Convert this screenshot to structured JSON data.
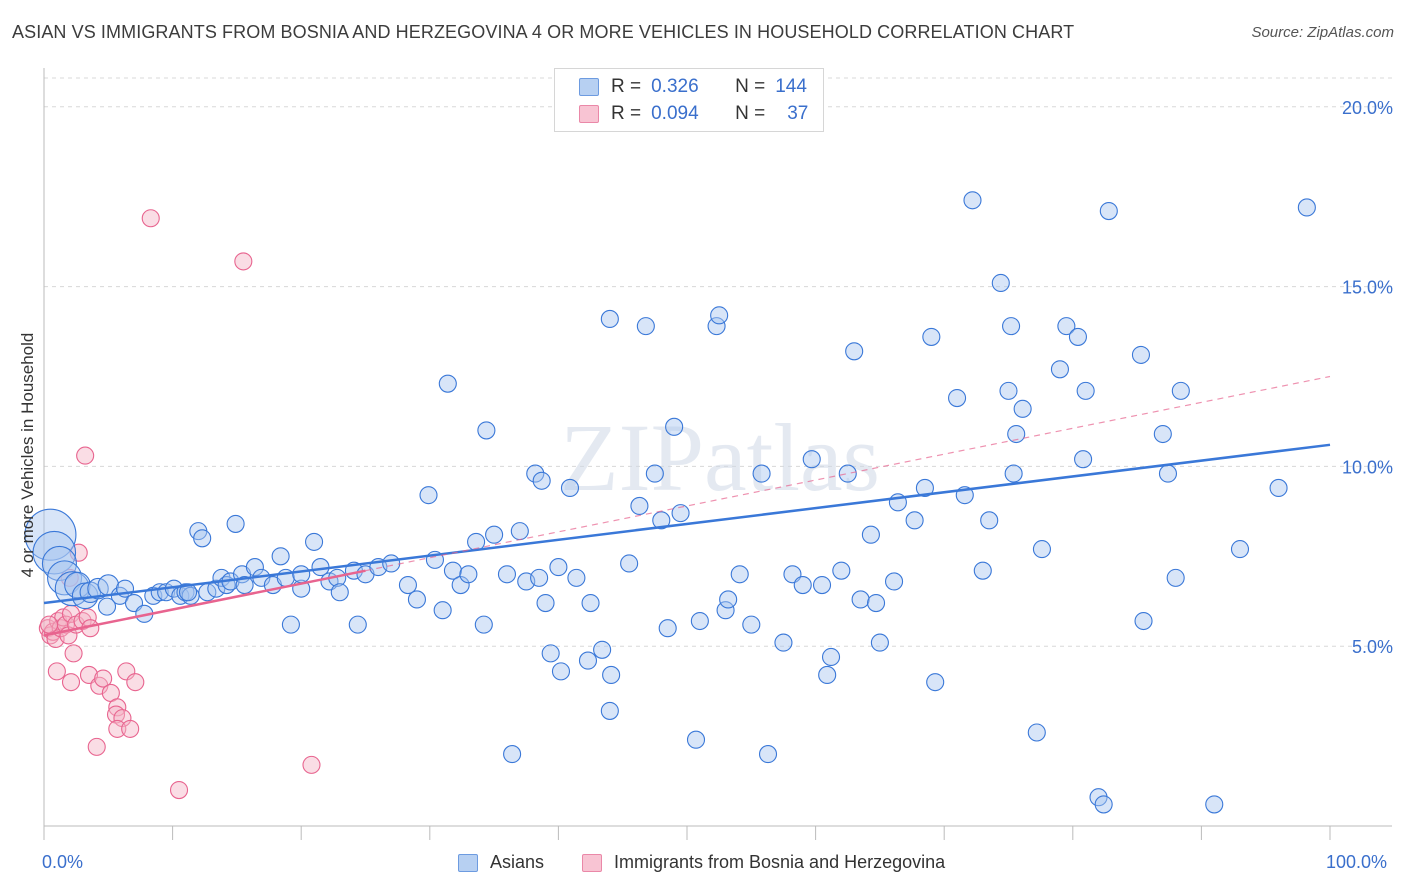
{
  "title": "ASIAN VS IMMIGRANTS FROM BOSNIA AND HERZEGOVINA 4 OR MORE VEHICLES IN HOUSEHOLD CORRELATION CHART",
  "source": "Source: ZipAtlas.com",
  "watermark": "ZIPatlas",
  "colors": {
    "blue": "#3a78d8",
    "blue_fill": "#a9c6ef",
    "pink": "#e8648f",
    "pink_fill": "#f5b3c6",
    "tick_label": "#3a6fcc",
    "grid": "#d8d8d8"
  },
  "legend": {
    "rows": [
      {
        "r_label": "R =",
        "r_value": "0.326",
        "n_label": "N =",
        "n_value": "144"
      },
      {
        "r_label": "R =",
        "r_value": "0.094",
        "n_label": "N =",
        "n_value": "37"
      }
    ]
  },
  "bottom_legend": [
    "Asians",
    "Immigrants from Bosnia and Herzegovina"
  ],
  "chart_data": {
    "type": "scatter",
    "title": "ASIAN VS IMMIGRANTS FROM BOSNIA AND HERZEGOVINA 4 OR MORE VEHICLES IN HOUSEHOLD CORRELATION CHART",
    "xlabel": "",
    "ylabel": "4 or more Vehicles in Household",
    "xlim": [
      0,
      100
    ],
    "ylim": [
      0,
      20.8
    ],
    "x_tick_labels": [
      "0.0%",
      "100.0%"
    ],
    "y_ticks": [
      5,
      10,
      15,
      20
    ],
    "y_tick_labels": [
      "5.0%",
      "10.0%",
      "15.0%",
      "20.0%"
    ],
    "grid": true,
    "series": [
      {
        "name": "Asians",
        "R": 0.326,
        "N": 144,
        "trend": {
          "x0": 0,
          "y0": 6.2,
          "x1": 100,
          "y1": 10.6,
          "dashed_from_x": null
        },
        "points": [
          {
            "x": 0.5,
            "y": 8.1,
            "s": 3
          },
          {
            "x": 0.8,
            "y": 7.6,
            "s": 2.5
          },
          {
            "x": 1.2,
            "y": 7.3,
            "s": 2
          },
          {
            "x": 1.6,
            "y": 6.9,
            "s": 2
          },
          {
            "x": 2.2,
            "y": 6.6,
            "s": 2
          },
          {
            "x": 2.6,
            "y": 6.7,
            "s": 1.5
          },
          {
            "x": 3.2,
            "y": 6.4,
            "s": 1.5
          },
          {
            "x": 3.6,
            "y": 6.5,
            "s": 1.2
          },
          {
            "x": 4.2,
            "y": 6.6,
            "s": 1.2
          },
          {
            "x": 5.0,
            "y": 6.7,
            "s": 1.2
          },
          {
            "x": 5.9,
            "y": 6.4,
            "s": 1
          },
          {
            "x": 6.3,
            "y": 6.6,
            "s": 1
          },
          {
            "x": 4.9,
            "y": 6.1,
            "s": 1
          },
          {
            "x": 7.0,
            "y": 6.2,
            "s": 1
          },
          {
            "x": 7.8,
            "y": 5.9,
            "s": 1
          },
          {
            "x": 8.5,
            "y": 6.4,
            "s": 1
          },
          {
            "x": 9.0,
            "y": 6.5,
            "s": 1
          },
          {
            "x": 9.5,
            "y": 6.5,
            "s": 1
          },
          {
            "x": 10.1,
            "y": 6.6,
            "s": 1
          },
          {
            "x": 10.6,
            "y": 6.4,
            "s": 1
          },
          {
            "x": 11.0,
            "y": 6.5,
            "s": 1
          },
          {
            "x": 11.4,
            "y": 6.4,
            "s": 1
          },
          {
            "x": 11.2,
            "y": 6.5,
            "s": 1
          },
          {
            "x": 12.0,
            "y": 8.2,
            "s": 1
          },
          {
            "x": 12.3,
            "y": 8.0,
            "s": 1
          },
          {
            "x": 12.7,
            "y": 6.5,
            "s": 1
          },
          {
            "x": 13.4,
            "y": 6.6,
            "s": 1
          },
          {
            "x": 13.8,
            "y": 6.9,
            "s": 1
          },
          {
            "x": 14.2,
            "y": 6.7,
            "s": 1
          },
          {
            "x": 14.5,
            "y": 6.8,
            "s": 1
          },
          {
            "x": 14.9,
            "y": 8.4,
            "s": 1
          },
          {
            "x": 15.4,
            "y": 7.0,
            "s": 1
          },
          {
            "x": 15.6,
            "y": 6.7,
            "s": 1
          },
          {
            "x": 16.4,
            "y": 7.2,
            "s": 1
          },
          {
            "x": 16.9,
            "y": 6.9,
            "s": 1
          },
          {
            "x": 17.8,
            "y": 6.7,
            "s": 1
          },
          {
            "x": 18.4,
            "y": 7.5,
            "s": 1
          },
          {
            "x": 18.8,
            "y": 6.9,
            "s": 1
          },
          {
            "x": 19.2,
            "y": 5.6,
            "s": 1
          },
          {
            "x": 20.0,
            "y": 6.6,
            "s": 1
          },
          {
            "x": 20.0,
            "y": 7.0,
            "s": 1
          },
          {
            "x": 21.0,
            "y": 7.9,
            "s": 1
          },
          {
            "x": 21.5,
            "y": 7.2,
            "s": 1
          },
          {
            "x": 22.2,
            "y": 6.8,
            "s": 1
          },
          {
            "x": 22.8,
            "y": 6.9,
            "s": 1
          },
          {
            "x": 23.0,
            "y": 6.5,
            "s": 1
          },
          {
            "x": 24.1,
            "y": 7.1,
            "s": 1
          },
          {
            "x": 24.4,
            "y": 5.6,
            "s": 1
          },
          {
            "x": 25.0,
            "y": 7.0,
            "s": 1
          },
          {
            "x": 26.0,
            "y": 7.2,
            "s": 1
          },
          {
            "x": 27.0,
            "y": 7.3,
            "s": 1
          },
          {
            "x": 28.3,
            "y": 6.7,
            "s": 1
          },
          {
            "x": 29.0,
            "y": 6.3,
            "s": 1
          },
          {
            "x": 29.9,
            "y": 9.2,
            "s": 1
          },
          {
            "x": 30.4,
            "y": 7.4,
            "s": 1
          },
          {
            "x": 31.0,
            "y": 6.0,
            "s": 1
          },
          {
            "x": 31.4,
            "y": 12.3,
            "s": 1
          },
          {
            "x": 31.8,
            "y": 7.1,
            "s": 1
          },
          {
            "x": 32.4,
            "y": 6.7,
            "s": 1
          },
          {
            "x": 33.0,
            "y": 7.0,
            "s": 1
          },
          {
            "x": 33.6,
            "y": 7.9,
            "s": 1
          },
          {
            "x": 34.2,
            "y": 5.6,
            "s": 1
          },
          {
            "x": 34.4,
            "y": 11.0,
            "s": 1
          },
          {
            "x": 35.0,
            "y": 8.1,
            "s": 1
          },
          {
            "x": 36.0,
            "y": 7.0,
            "s": 1
          },
          {
            "x": 37.0,
            "y": 8.2,
            "s": 1
          },
          {
            "x": 37.5,
            "y": 6.8,
            "s": 1
          },
          {
            "x": 38.2,
            "y": 9.8,
            "s": 1
          },
          {
            "x": 38.7,
            "y": 9.6,
            "s": 1
          },
          {
            "x": 38.5,
            "y": 6.9,
            "s": 1
          },
          {
            "x": 39.4,
            "y": 4.8,
            "s": 1
          },
          {
            "x": 39.0,
            "y": 6.2,
            "s": 1
          },
          {
            "x": 40.0,
            "y": 7.2,
            "s": 1
          },
          {
            "x": 40.2,
            "y": 4.3,
            "s": 1
          },
          {
            "x": 40.9,
            "y": 9.4,
            "s": 1
          },
          {
            "x": 41.4,
            "y": 6.9,
            "s": 1
          },
          {
            "x": 42.5,
            "y": 6.2,
            "s": 1
          },
          {
            "x": 42.3,
            "y": 4.6,
            "s": 1
          },
          {
            "x": 43.4,
            "y": 4.9,
            "s": 1
          },
          {
            "x": 44.0,
            "y": 3.2,
            "s": 1
          },
          {
            "x": 44.1,
            "y": 4.2,
            "s": 1
          },
          {
            "x": 44.0,
            "y": 14.1,
            "s": 1
          },
          {
            "x": 45.5,
            "y": 7.3,
            "s": 1
          },
          {
            "x": 46.3,
            "y": 8.9,
            "s": 1
          },
          {
            "x": 46.8,
            "y": 13.9,
            "s": 1
          },
          {
            "x": 47.5,
            "y": 9.8,
            "s": 1
          },
          {
            "x": 48.0,
            "y": 8.5,
            "s": 1
          },
          {
            "x": 48.5,
            "y": 5.5,
            "s": 1
          },
          {
            "x": 49.0,
            "y": 11.1,
            "s": 1
          },
          {
            "x": 49.5,
            "y": 8.7,
            "s": 1
          },
          {
            "x": 51.0,
            "y": 5.7,
            "s": 1
          },
          {
            "x": 52.3,
            "y": 13.9,
            "s": 1
          },
          {
            "x": 52.5,
            "y": 14.2,
            "s": 1
          },
          {
            "x": 53.0,
            "y": 6.0,
            "s": 1
          },
          {
            "x": 53.2,
            "y": 6.3,
            "s": 1
          },
          {
            "x": 54.1,
            "y": 7.0,
            "s": 1
          },
          {
            "x": 55.0,
            "y": 5.6,
            "s": 1
          },
          {
            "x": 55.8,
            "y": 9.8,
            "s": 1
          },
          {
            "x": 56.3,
            "y": 2.0,
            "s": 1
          },
          {
            "x": 57.5,
            "y": 5.1,
            "s": 1
          },
          {
            "x": 58.2,
            "y": 7.0,
            "s": 1
          },
          {
            "x": 59.0,
            "y": 6.7,
            "s": 1
          },
          {
            "x": 59.7,
            "y": 10.2,
            "s": 1
          },
          {
            "x": 60.5,
            "y": 6.7,
            "s": 1
          },
          {
            "x": 60.9,
            "y": 4.2,
            "s": 1
          },
          {
            "x": 61.2,
            "y": 4.7,
            "s": 1
          },
          {
            "x": 62.0,
            "y": 7.1,
            "s": 1
          },
          {
            "x": 62.5,
            "y": 9.8,
            "s": 1
          },
          {
            "x": 63.0,
            "y": 13.2,
            "s": 1
          },
          {
            "x": 63.5,
            "y": 6.3,
            "s": 1
          },
          {
            "x": 64.3,
            "y": 8.1,
            "s": 1
          },
          {
            "x": 64.7,
            "y": 6.2,
            "s": 1
          },
          {
            "x": 65.0,
            "y": 5.1,
            "s": 1
          },
          {
            "x": 66.1,
            "y": 6.8,
            "s": 1
          },
          {
            "x": 66.4,
            "y": 9.0,
            "s": 1
          },
          {
            "x": 67.7,
            "y": 8.5,
            "s": 1
          },
          {
            "x": 68.5,
            "y": 9.4,
            "s": 1
          },
          {
            "x": 69.3,
            "y": 4.0,
            "s": 1
          },
          {
            "x": 69.0,
            "y": 13.6,
            "s": 1
          },
          {
            "x": 71.0,
            "y": 11.9,
            "s": 1
          },
          {
            "x": 71.6,
            "y": 9.2,
            "s": 1
          },
          {
            "x": 72.2,
            "y": 17.4,
            "s": 1
          },
          {
            "x": 73.0,
            "y": 7.1,
            "s": 1
          },
          {
            "x": 73.5,
            "y": 8.5,
            "s": 1
          },
          {
            "x": 74.4,
            "y": 15.1,
            "s": 1
          },
          {
            "x": 75.0,
            "y": 12.1,
            "s": 1
          },
          {
            "x": 75.2,
            "y": 13.9,
            "s": 1
          },
          {
            "x": 75.6,
            "y": 10.9,
            "s": 1
          },
          {
            "x": 75.4,
            "y": 9.8,
            "s": 1
          },
          {
            "x": 76.1,
            "y": 11.6,
            "s": 1
          },
          {
            "x": 77.2,
            "y": 2.6,
            "s": 1
          },
          {
            "x": 77.6,
            "y": 7.7,
            "s": 1
          },
          {
            "x": 79.0,
            "y": 12.7,
            "s": 1
          },
          {
            "x": 79.5,
            "y": 13.9,
            "s": 1
          },
          {
            "x": 80.4,
            "y": 13.6,
            "s": 1
          },
          {
            "x": 81.0,
            "y": 12.1,
            "s": 1
          },
          {
            "x": 80.8,
            "y": 10.2,
            "s": 1
          },
          {
            "x": 82.0,
            "y": 0.8,
            "s": 1
          },
          {
            "x": 82.4,
            "y": 0.6,
            "s": 1
          },
          {
            "x": 82.8,
            "y": 17.1,
            "s": 1
          },
          {
            "x": 85.3,
            "y": 13.1,
            "s": 1
          },
          {
            "x": 85.5,
            "y": 5.7,
            "s": 1
          },
          {
            "x": 87.0,
            "y": 10.9,
            "s": 1
          },
          {
            "x": 87.4,
            "y": 9.8,
            "s": 1
          },
          {
            "x": 88.0,
            "y": 6.9,
            "s": 1
          },
          {
            "x": 88.4,
            "y": 12.1,
            "s": 1
          },
          {
            "x": 91.0,
            "y": 0.6,
            "s": 1
          },
          {
            "x": 93.0,
            "y": 7.7,
            "s": 1
          },
          {
            "x": 96.0,
            "y": 9.4,
            "s": 1
          },
          {
            "x": 98.2,
            "y": 17.2,
            "s": 1
          },
          {
            "x": 36.4,
            "y": 2.0,
            "s": 1
          },
          {
            "x": 50.7,
            "y": 2.4,
            "s": 1
          }
        ]
      },
      {
        "name": "Immigrants from Bosnia and Herzegovina",
        "R": 0.094,
        "N": 37,
        "trend": {
          "x0": 0,
          "y0": 5.3,
          "x1": 100,
          "y1": 12.5,
          "solid_until_x": 25
        },
        "points": [
          {
            "x": 0.3,
            "y": 5.5,
            "s": 1
          },
          {
            "x": 0.5,
            "y": 5.3,
            "s": 1
          },
          {
            "x": 0.7,
            "y": 5.4,
            "s": 1
          },
          {
            "x": 0.9,
            "y": 5.2,
            "s": 1
          },
          {
            "x": 1.1,
            "y": 5.7,
            "s": 1
          },
          {
            "x": 1.3,
            "y": 5.5,
            "s": 1
          },
          {
            "x": 1.5,
            "y": 5.8,
            "s": 1
          },
          {
            "x": 1.7,
            "y": 5.6,
            "s": 1
          },
          {
            "x": 1.9,
            "y": 5.3,
            "s": 1
          },
          {
            "x": 2.1,
            "y": 5.9,
            "s": 1
          },
          {
            "x": 2.5,
            "y": 5.6,
            "s": 1
          },
          {
            "x": 3.0,
            "y": 5.7,
            "s": 1
          },
          {
            "x": 3.4,
            "y": 5.8,
            "s": 1
          },
          {
            "x": 3.6,
            "y": 5.5,
            "s": 1
          },
          {
            "x": 1.0,
            "y": 4.3,
            "s": 1
          },
          {
            "x": 2.1,
            "y": 4.0,
            "s": 1
          },
          {
            "x": 2.3,
            "y": 4.8,
            "s": 1
          },
          {
            "x": 3.5,
            "y": 4.2,
            "s": 1
          },
          {
            "x": 4.3,
            "y": 3.9,
            "s": 1
          },
          {
            "x": 4.6,
            "y": 4.1,
            "s": 1
          },
          {
            "x": 5.2,
            "y": 3.7,
            "s": 1
          },
          {
            "x": 5.7,
            "y": 3.3,
            "s": 1
          },
          {
            "x": 5.6,
            "y": 3.1,
            "s": 1
          },
          {
            "x": 6.1,
            "y": 3.0,
            "s": 1
          },
          {
            "x": 5.7,
            "y": 2.7,
            "s": 1
          },
          {
            "x": 6.7,
            "y": 2.7,
            "s": 1
          },
          {
            "x": 6.4,
            "y": 4.3,
            "s": 1
          },
          {
            "x": 7.1,
            "y": 4.0,
            "s": 1
          },
          {
            "x": 4.1,
            "y": 2.2,
            "s": 1
          },
          {
            "x": 2.7,
            "y": 7.6,
            "s": 1
          },
          {
            "x": 3.2,
            "y": 10.3,
            "s": 1
          },
          {
            "x": 8.3,
            "y": 16.9,
            "s": 1
          },
          {
            "x": 15.5,
            "y": 15.7,
            "s": 1
          },
          {
            "x": 10.5,
            "y": 1.0,
            "s": 1
          },
          {
            "x": 20.8,
            "y": 1.7,
            "s": 1
          },
          {
            "x": 2.0,
            "y": 6.9,
            "s": 1
          },
          {
            "x": 0.4,
            "y": 5.6,
            "s": 1
          }
        ]
      }
    ]
  }
}
